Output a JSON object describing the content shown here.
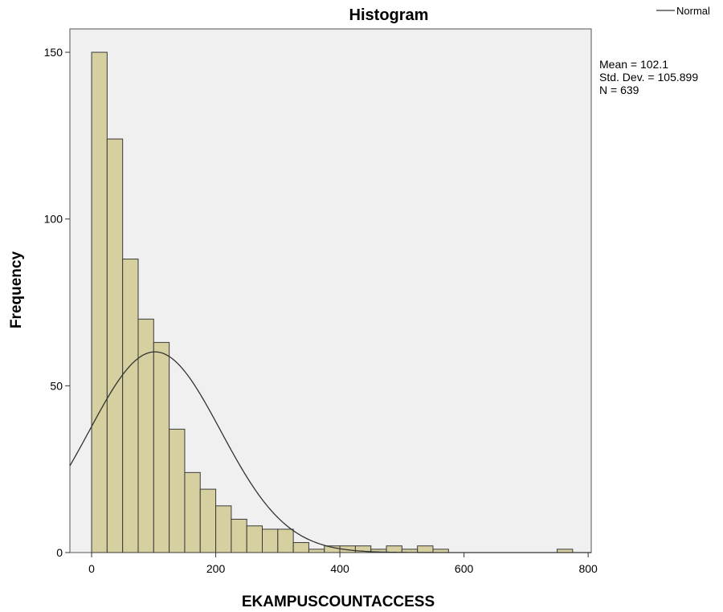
{
  "chart_data": {
    "type": "bar",
    "title": "Histogram",
    "xlabel": "EKAMPUSCOUNTACCESS",
    "ylabel": "Frequency",
    "bin_width": 25,
    "bin_start": 0,
    "x": [
      12.5,
      37.5,
      62.5,
      87.5,
      112.5,
      137.5,
      162.5,
      187.5,
      212.5,
      237.5,
      262.5,
      287.5,
      312.5,
      337.5,
      362.5,
      387.5,
      412.5,
      437.5,
      462.5,
      487.5,
      512.5,
      537.5,
      562.5,
      587.5,
      612.5,
      637.5,
      662.5,
      687.5,
      712.5,
      737.5,
      762.5
    ],
    "values": [
      150,
      124,
      88,
      70,
      63,
      37,
      24,
      19,
      14,
      10,
      8,
      7,
      7,
      3,
      1,
      2,
      2,
      2,
      1,
      2,
      1,
      2,
      1,
      0,
      0,
      0,
      0,
      0,
      0,
      0,
      1
    ],
    "xlim": [
      -35,
      805
    ],
    "ylim": [
      0,
      157
    ],
    "xticks": [
      0,
      200,
      400,
      600,
      800
    ],
    "xtick_labels": [
      "0",
      "200",
      "400",
      "600",
      "800"
    ],
    "yticks": [
      0,
      50,
      100,
      150
    ],
    "ytick_labels": [
      "0",
      "50",
      "100",
      "150"
    ],
    "normal_curve": {
      "mean": 102.1,
      "std": 105.899,
      "n": 639
    },
    "stats": [
      "Mean = 102.1",
      "Std. Dev. = 105.899",
      "N = 639"
    ],
    "legend": {
      "label": "Normal",
      "position": "top-right"
    },
    "colors": {
      "bar_fill": "#d6d0a0",
      "bar_stroke": "#3a3a3a",
      "plot_bg": "#f0f0f0",
      "curve": "#333333"
    },
    "grid": false
  }
}
